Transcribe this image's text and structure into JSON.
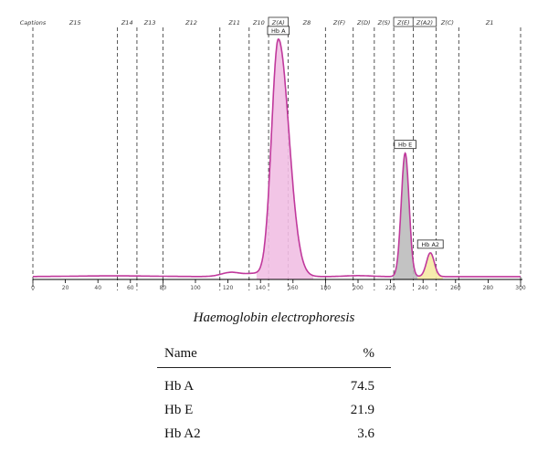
{
  "chart_data": {
    "type": "line",
    "title": "",
    "xlabel": "",
    "ylabel": "",
    "xlim": [
      0,
      300
    ],
    "x_ticks": [
      0,
      20,
      40,
      60,
      80,
      100,
      120,
      140,
      160,
      180,
      200,
      220,
      240,
      260,
      280,
      300
    ],
    "x_tick_labels": [
      "0",
      "20",
      "40",
      "60",
      "80",
      "100",
      "120",
      "140",
      "160",
      "180",
      "200",
      "220",
      "240",
      "260",
      "280",
      "300"
    ],
    "zones": [
      {
        "name": "Captions",
        "x_start": 0,
        "x_end": 0
      },
      {
        "name": "Z15",
        "x_start": 0,
        "x_end": 52
      },
      {
        "name": "Z14",
        "x_start": 52,
        "x_end": 64
      },
      {
        "name": "Z13",
        "x_start": 64,
        "x_end": 80
      },
      {
        "name": "Z12",
        "x_start": 80,
        "x_end": 115
      },
      {
        "name": "Z11",
        "x_start": 115,
        "x_end": 133
      },
      {
        "name": "Z10",
        "x_start": 133,
        "x_end": 145
      },
      {
        "name": "Z(A)",
        "x_start": 145,
        "x_end": 157
      },
      {
        "name": "Z8",
        "x_start": 157,
        "x_end": 180
      },
      {
        "name": "Z(F)",
        "x_start": 180,
        "x_end": 197
      },
      {
        "name": "Z(D)",
        "x_start": 197,
        "x_end": 210
      },
      {
        "name": "Z(S)",
        "x_start": 210,
        "x_end": 222
      },
      {
        "name": "Z(E)",
        "x_start": 222,
        "x_end": 234
      },
      {
        "name": "Z(A2)",
        "x_start": 234,
        "x_end": 248
      },
      {
        "name": "Z(C)",
        "x_start": 248,
        "x_end": 262
      },
      {
        "name": "Z1",
        "x_start": 262,
        "x_end": 300
      }
    ],
    "highlight_zones": [
      "Z(A)",
      "Z(E)",
      "Z(A2)"
    ],
    "peaks": [
      {
        "name": "Hb A",
        "x": 151,
        "height": 1.0,
        "fill": "#f1bfe3"
      },
      {
        "name": "Hb E",
        "x": 229,
        "height": 0.52,
        "fill": "#bdbdbd"
      },
      {
        "name": "Hb A2",
        "x": 244.5,
        "height": 0.1,
        "fill": "#f5eaa4"
      }
    ],
    "line_color": "#c0399c",
    "grid": false
  },
  "caption": "Haemoglobin electrophoresis",
  "table": {
    "headers": {
      "name": "Name",
      "percent": "%"
    },
    "rows": [
      {
        "name": "Hb A",
        "percent": "74.5"
      },
      {
        "name": "Hb E",
        "percent": "21.9"
      },
      {
        "name": "Hb A2",
        "percent": "3.6"
      }
    ]
  }
}
